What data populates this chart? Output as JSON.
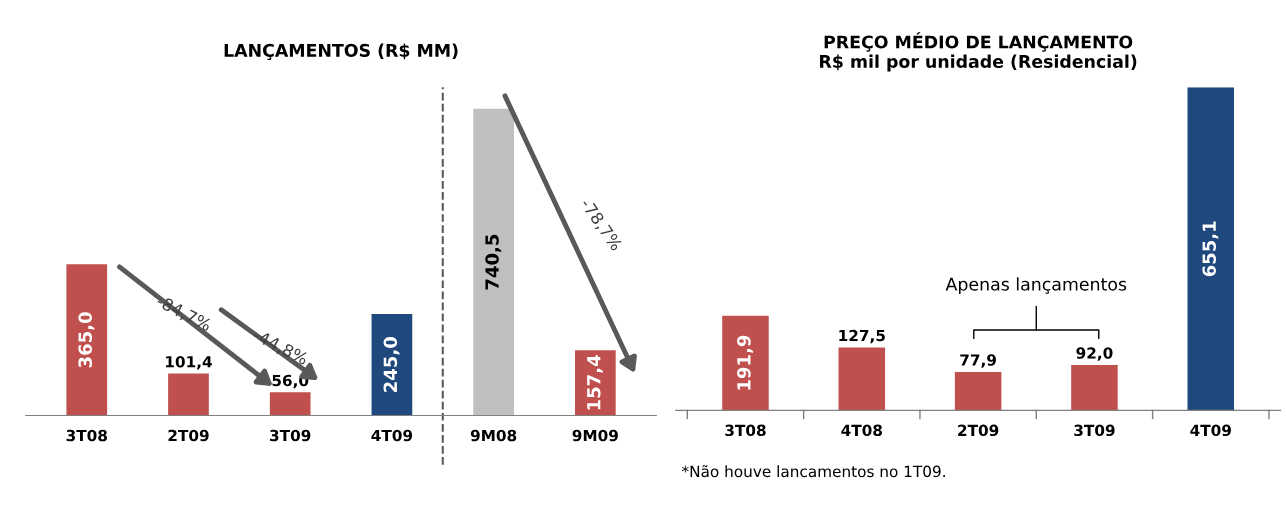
{
  "chart_data": [
    {
      "type": "bar",
      "title": "LANÇAMENTOS (R$ MM)",
      "categories": [
        "3T08",
        "2T09",
        "3T09",
        "4T09",
        "9M08",
        "9M09"
      ],
      "values": [
        365.0,
        101.4,
        56.0,
        245.0,
        740.5,
        157.4
      ],
      "colors": [
        "#c0504d",
        "#c0504d",
        "#c0504d",
        "#1f497d",
        "#bfbfbf",
        "#c0504d"
      ],
      "value_labels": [
        "365,0",
        "101,4",
        "56,0",
        "245,0",
        "740,5",
        "157,4"
      ],
      "annotations": [
        "-84,7%",
        "-44,8%",
        "-78,7%"
      ]
    },
    {
      "type": "bar",
      "title": "PREÇO MÉDIO DE LANÇAMENTO",
      "subtitle": "R$ mil por unidade (Residencial)",
      "categories": [
        "3T08",
        "4T08",
        "2T09",
        "3T09",
        "4T09"
      ],
      "values": [
        191.9,
        127.5,
        77.9,
        92.0,
        655.1
      ],
      "colors": [
        "#c0504d",
        "#c0504d",
        "#c0504d",
        "#c0504d",
        "#1f497d"
      ],
      "value_labels": [
        "191,9",
        "127,5",
        "77,9",
        "92,0",
        "655,1"
      ],
      "annotations": [
        "Apenas lançamentos",
        "*Não houve lancamentos no 1T09."
      ]
    }
  ]
}
